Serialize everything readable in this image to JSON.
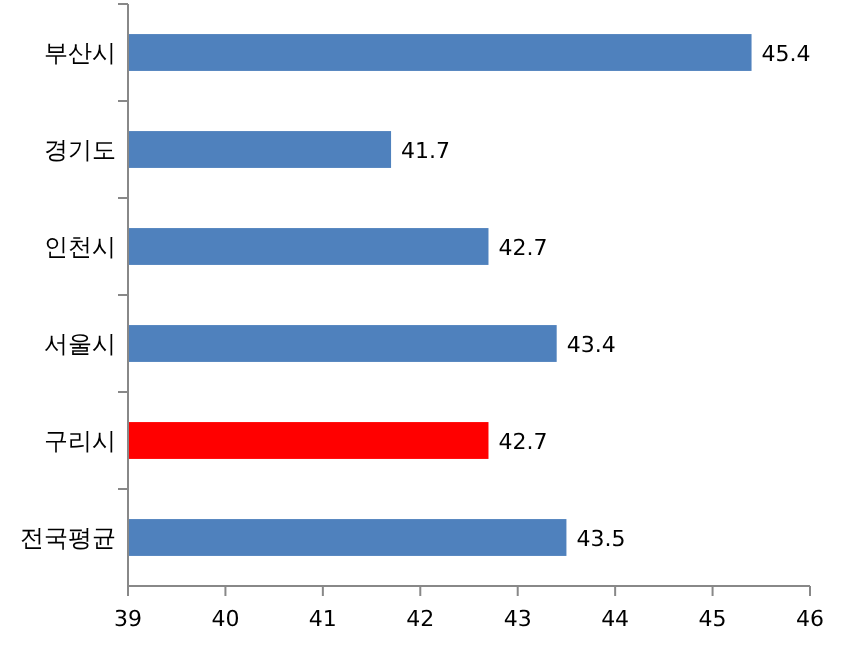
{
  "chart_data": {
    "type": "bar",
    "orientation": "horizontal",
    "categories": [
      "부산시",
      "경기도",
      "인천시",
      "서울시",
      "구리시",
      "전국평균"
    ],
    "values": [
      45.4,
      41.7,
      42.7,
      43.4,
      42.7,
      43.5
    ],
    "colors": [
      "#4f81bd",
      "#4f81bd",
      "#4f81bd",
      "#4f81bd",
      "#ff0000",
      "#4f81bd"
    ],
    "xlim": [
      39,
      46
    ],
    "xticks": [
      39,
      40,
      41,
      42,
      43,
      44,
      45,
      46
    ],
    "data_labels": true,
    "grid": false
  }
}
